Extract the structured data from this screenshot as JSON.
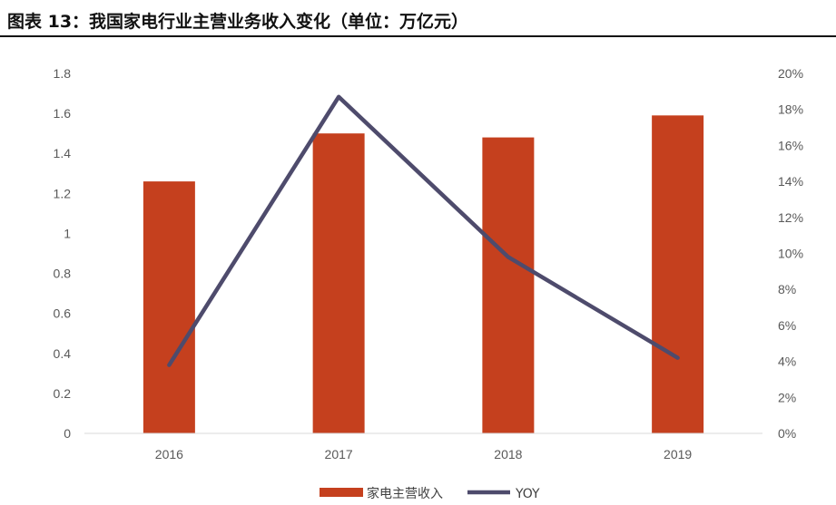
{
  "header": {
    "title": "图表 13：我国家电行业主营业务收入变化（单位：万亿元）"
  },
  "colors": {
    "bar": "#C5401E",
    "line": "#4E4B6C",
    "axis": "#D9D9D9",
    "tick_text": "#595959"
  },
  "chart_data": {
    "type": "bar",
    "categories": [
      "2016",
      "2017",
      "2018",
      "2019"
    ],
    "series": [
      {
        "name": "家电主营收入",
        "type": "bar",
        "axis": "left",
        "values": [
          1.26,
          1.5,
          1.48,
          1.59
        ]
      },
      {
        "name": "YOY",
        "type": "line",
        "axis": "right",
        "values": [
          3.8,
          18.7,
          9.8,
          4.2
        ]
      }
    ],
    "y_left": {
      "min": 0,
      "max": 1.8,
      "step": 0.2,
      "tick_labels": [
        "0",
        "0.2",
        "0.4",
        "0.6",
        "0.8",
        "1",
        "1.2",
        "1.4",
        "1.6",
        "1.8"
      ]
    },
    "y_right": {
      "min": 0,
      "max": 20,
      "step": 2,
      "tick_labels": [
        "0%",
        "2%",
        "4%",
        "6%",
        "8%",
        "10%",
        "12%",
        "14%",
        "16%",
        "18%",
        "20%"
      ]
    },
    "grid": false,
    "legend_position": "bottom"
  }
}
